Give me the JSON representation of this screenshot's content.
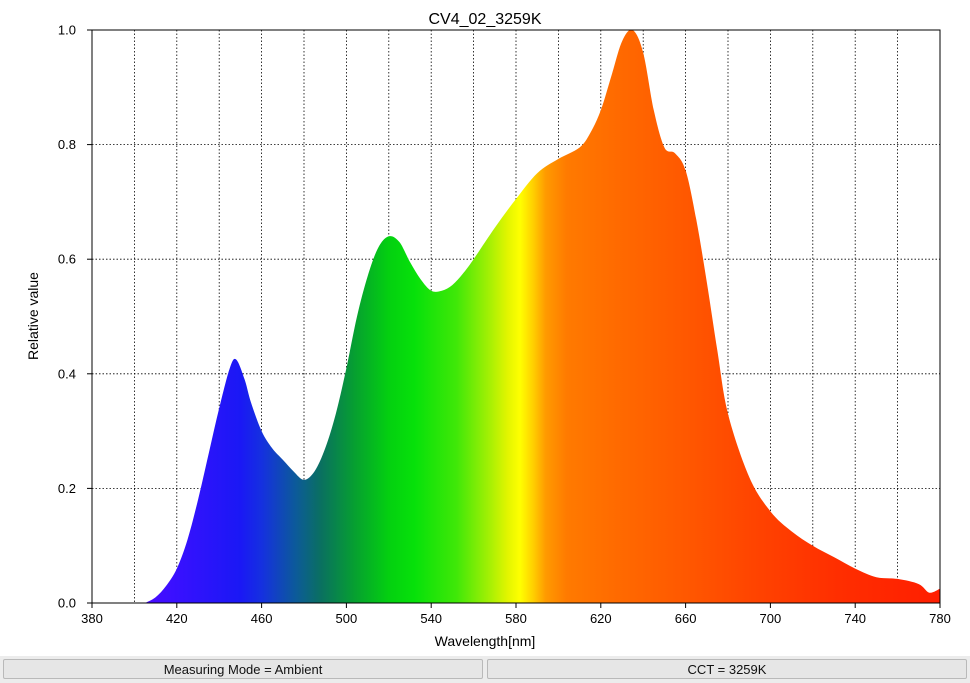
{
  "chart_data": {
    "type": "area",
    "title": "CV4_02_3259K",
    "xlabel": "Wavelength[nm]",
    "ylabel": "Relative value",
    "xlim": [
      380,
      780
    ],
    "ylim": [
      0,
      1.0
    ],
    "x_ticks": [
      380,
      420,
      460,
      500,
      540,
      580,
      620,
      660,
      700,
      740,
      780
    ],
    "x_tick_labels": [
      "380",
      "420",
      "460",
      "500",
      "540",
      "580",
      "620",
      "660",
      "700",
      "740",
      "780"
    ],
    "y_ticks": [
      0,
      0.2,
      0.4,
      0.6,
      0.8,
      1.0
    ],
    "y_tick_labels": [
      "0.0",
      "0.2",
      "0.4",
      "0.6",
      "0.8",
      "1.0"
    ],
    "grid": true,
    "fill": "visible spectrum colors",
    "x": [
      405,
      410,
      415,
      420,
      425,
      430,
      435,
      440,
      445,
      448,
      452,
      455,
      460,
      465,
      470,
      475,
      480,
      485,
      490,
      495,
      500,
      505,
      510,
      515,
      520,
      525,
      530,
      535,
      540,
      545,
      550,
      555,
      560,
      570,
      580,
      590,
      600,
      610,
      615,
      620,
      625,
      630,
      635,
      640,
      645,
      650,
      655,
      660,
      665,
      670,
      675,
      680,
      690,
      700,
      710,
      720,
      730,
      740,
      750,
      760,
      770,
      775,
      780
    ],
    "y": [
      0.0,
      0.01,
      0.03,
      0.06,
      0.11,
      0.18,
      0.26,
      0.34,
      0.41,
      0.425,
      0.39,
      0.35,
      0.3,
      0.27,
      0.25,
      0.23,
      0.215,
      0.23,
      0.27,
      0.33,
      0.41,
      0.5,
      0.57,
      0.62,
      0.64,
      0.63,
      0.595,
      0.565,
      0.545,
      0.545,
      0.555,
      0.575,
      0.6,
      0.655,
      0.705,
      0.75,
      0.775,
      0.795,
      0.82,
      0.86,
      0.92,
      0.98,
      1.0,
      0.96,
      0.86,
      0.795,
      0.785,
      0.755,
      0.67,
      0.56,
      0.44,
      0.33,
      0.22,
      0.16,
      0.125,
      0.1,
      0.08,
      0.06,
      0.045,
      0.042,
      0.033,
      0.018,
      0.025
    ]
  },
  "status": {
    "mode": "Measuring Mode = Ambient",
    "cct": "CCT = 3259K"
  }
}
